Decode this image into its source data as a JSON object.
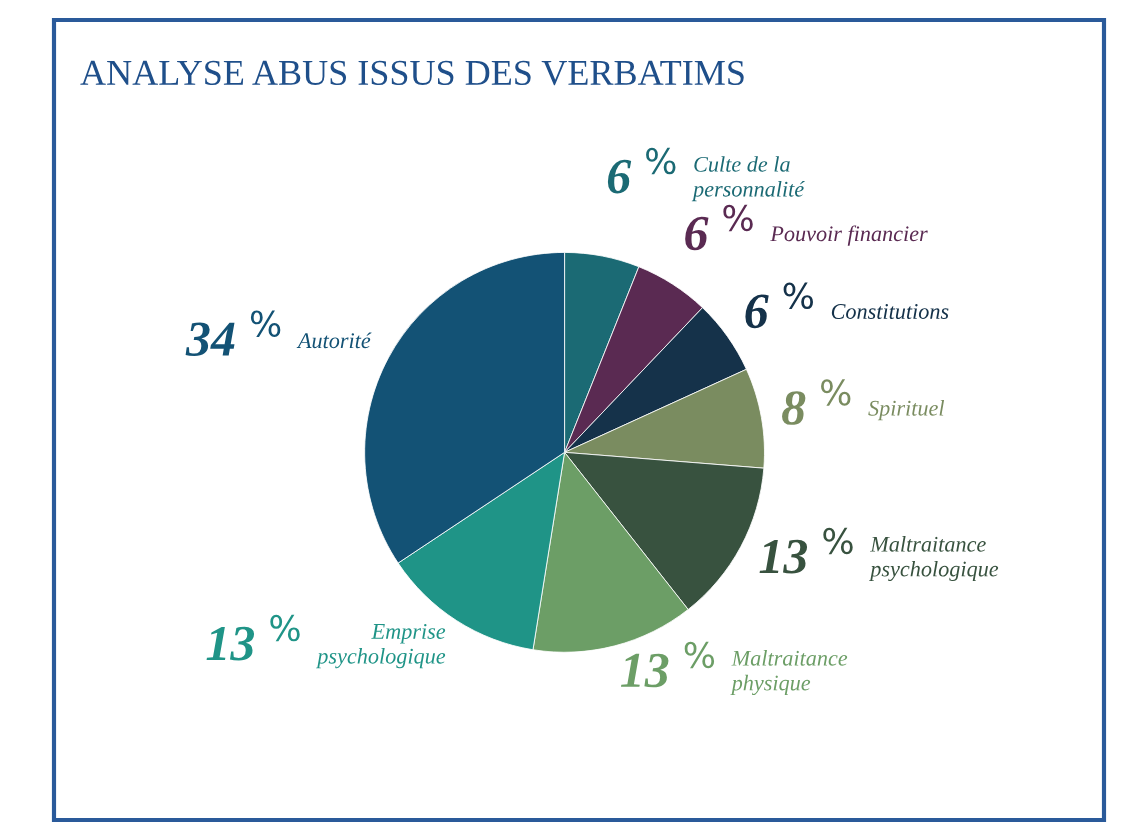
{
  "chart_data": {
    "type": "pie",
    "title": "ANALYSE ABUS ISSUS DES VERBATIMS",
    "categories": [
      "Culte de la\npersonnalité",
      "Pouvoir financier",
      "Constitutions",
      "Spirituel",
      "Maltraitance\npsychologique",
      "Maltraitance\nphysique",
      "Emprise\npsychologique",
      "Autorité"
    ],
    "values": [
      6,
      6,
      6,
      8,
      13,
      13,
      13,
      34
    ],
    "value_labels": [
      "6 $^{%}$",
      "6 $^{%}$",
      "6 $^{%}$",
      "8 $^{%}$",
      "13 $^{%}$",
      "13 $^{%}$",
      "13 $^{%}$",
      "34 $^{%}$"
    ],
    "colors": [
      "#1b6a74",
      "#5a2a52",
      "#15324a",
      "#7a8c60",
      "#38523f",
      "#6c9e66",
      "#1f9487",
      "#135275"
    ]
  }
}
